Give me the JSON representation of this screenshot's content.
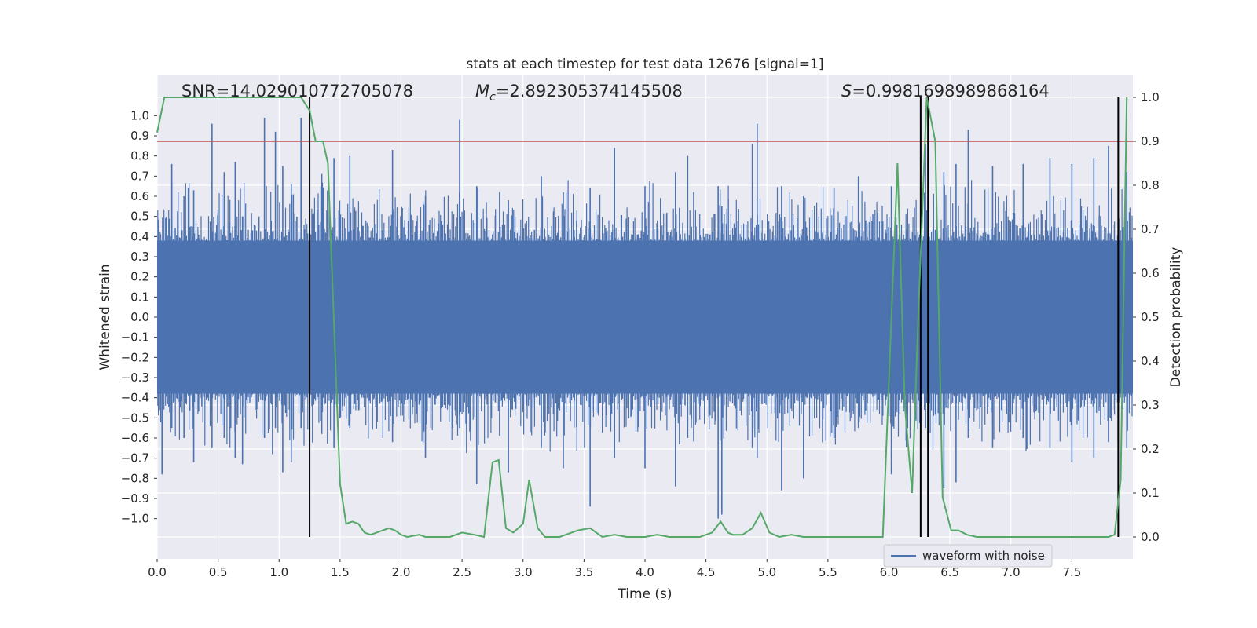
{
  "chart_data": {
    "type": "line",
    "title": "stats at each timestep for test data 12676 [signal=1]",
    "xlabel": "Time (s)",
    "ylabel_left": "Whitened strain",
    "ylabel_right": "Detection probability",
    "xlim": [
      0.0,
      8.0
    ],
    "ylim_left": [
      -1.2,
      1.2
    ],
    "ylim_right": [
      -0.05,
      1.05
    ],
    "x_ticks": [
      "0.0",
      "0.5",
      "1.0",
      "1.5",
      "2.0",
      "2.5",
      "3.0",
      "3.5",
      "4.0",
      "4.5",
      "5.0",
      "5.5",
      "6.0",
      "6.5",
      "7.0",
      "7.5"
    ],
    "y_ticks_left": [
      "1.0",
      "0.9",
      "0.8",
      "0.7",
      "0.6",
      "0.5",
      "0.4",
      "0.3",
      "0.2",
      "0.1",
      "0.0",
      "−0.1",
      "−0.2",
      "−0.3",
      "−0.4",
      "−0.5",
      "−0.6",
      "−0.7",
      "−0.8",
      "−0.9",
      "−1.0"
    ],
    "y_ticks_right": [
      "1.0",
      "0.9",
      "0.8",
      "0.7",
      "0.6",
      "0.5",
      "0.4",
      "0.3",
      "0.2",
      "0.1",
      "0.0"
    ],
    "grid": true,
    "legend": {
      "position": "lower-right",
      "entries": [
        {
          "label": "waveform with noise",
          "color": "#4c72b0"
        }
      ]
    },
    "annotations": {
      "snr": "SNR=14.029010772705078",
      "mc_symbol": "M",
      "mc_sub": "c",
      "mc_value": "=2.892305374145508",
      "s_symbol": "S",
      "s_value": "=0.9981698989868164"
    },
    "threshold": {
      "value": 0.9,
      "axis": "right",
      "color": "#c44e52"
    },
    "vertical_markers": [
      1.25,
      6.26,
      6.32,
      7.88
    ],
    "series": [
      {
        "name": "waveform with noise",
        "color": "#4c72b0",
        "axis": "left",
        "description": "noisy whitened strain, core band roughly -0.4 to 0.4 with spikes",
        "spikes": [
          [
            0.04,
            0.37,
            -0.78
          ],
          [
            0.12,
            0.76,
            -0.55
          ],
          [
            0.22,
            0.6,
            -0.6
          ],
          [
            0.3,
            0.63,
            -0.72
          ],
          [
            0.45,
            0.96,
            -0.65
          ],
          [
            0.55,
            0.72,
            -0.6
          ],
          [
            0.64,
            0.77,
            -0.7
          ],
          [
            0.7,
            0.5,
            -0.73
          ],
          [
            0.88,
            0.99,
            -0.6
          ],
          [
            0.97,
            0.92,
            -0.55
          ],
          [
            1.03,
            0.75,
            -0.77
          ],
          [
            1.1,
            0.66,
            -0.72
          ],
          [
            1.18,
            0.99,
            -0.55
          ],
          [
            1.35,
            0.71,
            -0.58
          ],
          [
            1.45,
            0.79,
            -0.65
          ],
          [
            1.58,
            0.8,
            -0.55
          ],
          [
            1.93,
            0.83,
            -0.62
          ],
          [
            2.2,
            0.6,
            -0.7
          ],
          [
            2.48,
            0.98,
            -0.55
          ],
          [
            2.62,
            0.65,
            -0.83
          ],
          [
            2.88,
            0.58,
            -0.77
          ],
          [
            3.15,
            0.7,
            -0.65
          ],
          [
            3.33,
            0.62,
            -0.75
          ],
          [
            3.55,
            0.64,
            -0.94
          ],
          [
            3.75,
            0.84,
            -0.7
          ],
          [
            4.0,
            0.65,
            -0.75
          ],
          [
            4.25,
            0.72,
            -0.84
          ],
          [
            4.35,
            0.8,
            -0.6
          ],
          [
            4.6,
            0.65,
            -1.0
          ],
          [
            4.63,
            0.55,
            -0.98
          ],
          [
            4.88,
            0.86,
            -0.65
          ],
          [
            4.92,
            0.96,
            -0.7
          ],
          [
            5.12,
            0.65,
            -0.86
          ],
          [
            5.3,
            0.6,
            -0.8
          ],
          [
            5.55,
            0.64,
            -0.6
          ],
          [
            5.75,
            0.7,
            -0.55
          ],
          [
            6.02,
            0.65,
            -0.78
          ],
          [
            6.26,
            0.97,
            -0.6
          ],
          [
            6.3,
            0.86,
            -0.55
          ],
          [
            6.45,
            0.72,
            -0.85
          ],
          [
            6.55,
            0.76,
            -0.82
          ],
          [
            6.65,
            0.93,
            -0.6
          ],
          [
            6.85,
            0.75,
            -0.65
          ],
          [
            7.1,
            0.76,
            -0.6
          ],
          [
            7.32,
            0.79,
            -0.65
          ],
          [
            7.5,
            0.76,
            -0.72
          ],
          [
            7.68,
            0.79,
            -0.7
          ],
          [
            7.8,
            0.85,
            -0.62
          ],
          [
            7.95,
            0.72,
            -0.65
          ]
        ]
      },
      {
        "name": "detection probability",
        "color": "#55a868",
        "axis": "right",
        "x": [
          0.0,
          0.06,
          0.12,
          0.5,
          0.9,
          1.18,
          1.25,
          1.3,
          1.36,
          1.4,
          1.5,
          1.55,
          1.6,
          1.65,
          1.7,
          1.75,
          1.8,
          1.9,
          1.95,
          2.0,
          2.05,
          2.15,
          2.2,
          2.3,
          2.4,
          2.5,
          2.6,
          2.68,
          2.75,
          2.8,
          2.86,
          2.92,
          3.0,
          3.05,
          3.12,
          3.18,
          3.3,
          3.45,
          3.55,
          3.65,
          3.75,
          3.85,
          4.0,
          4.1,
          4.2,
          4.3,
          4.45,
          4.55,
          4.62,
          4.68,
          4.72,
          4.8,
          4.88,
          4.95,
          5.02,
          5.1,
          5.2,
          5.3,
          5.4,
          5.5,
          5.6,
          5.75,
          5.95,
          6.07,
          6.13,
          6.19,
          6.24,
          6.31,
          6.38,
          6.44,
          6.51,
          6.57,
          6.64,
          6.72,
          6.85,
          7.0,
          7.2,
          7.4,
          7.6,
          7.8,
          7.85,
          7.9,
          7.95
        ],
        "y": [
          0.92,
          1.0,
          1.0,
          1.0,
          1.0,
          1.0,
          0.97,
          0.9,
          0.9,
          0.85,
          0.12,
          0.03,
          0.035,
          0.03,
          0.01,
          0.005,
          0.01,
          0.02,
          0.015,
          0.005,
          0.0,
          0.005,
          0.0,
          0.0,
          0.0,
          0.01,
          0.005,
          0.0,
          0.17,
          0.175,
          0.02,
          0.01,
          0.03,
          0.13,
          0.02,
          0.0,
          0.0,
          0.015,
          0.02,
          0.0,
          0.005,
          0.0,
          0.0,
          0.005,
          0.0,
          0.0,
          0.0,
          0.01,
          0.035,
          0.01,
          0.005,
          0.005,
          0.02,
          0.055,
          0.01,
          0.0,
          0.005,
          0.0,
          0.0,
          0.0,
          0.0,
          0.0,
          0.0,
          0.85,
          0.3,
          0.1,
          0.5,
          1.0,
          0.9,
          0.09,
          0.015,
          0.015,
          0.005,
          0.0,
          0.0,
          0.0,
          0.0,
          0.0,
          0.0,
          0.0,
          0.005,
          0.13,
          1.0
        ]
      }
    ]
  }
}
